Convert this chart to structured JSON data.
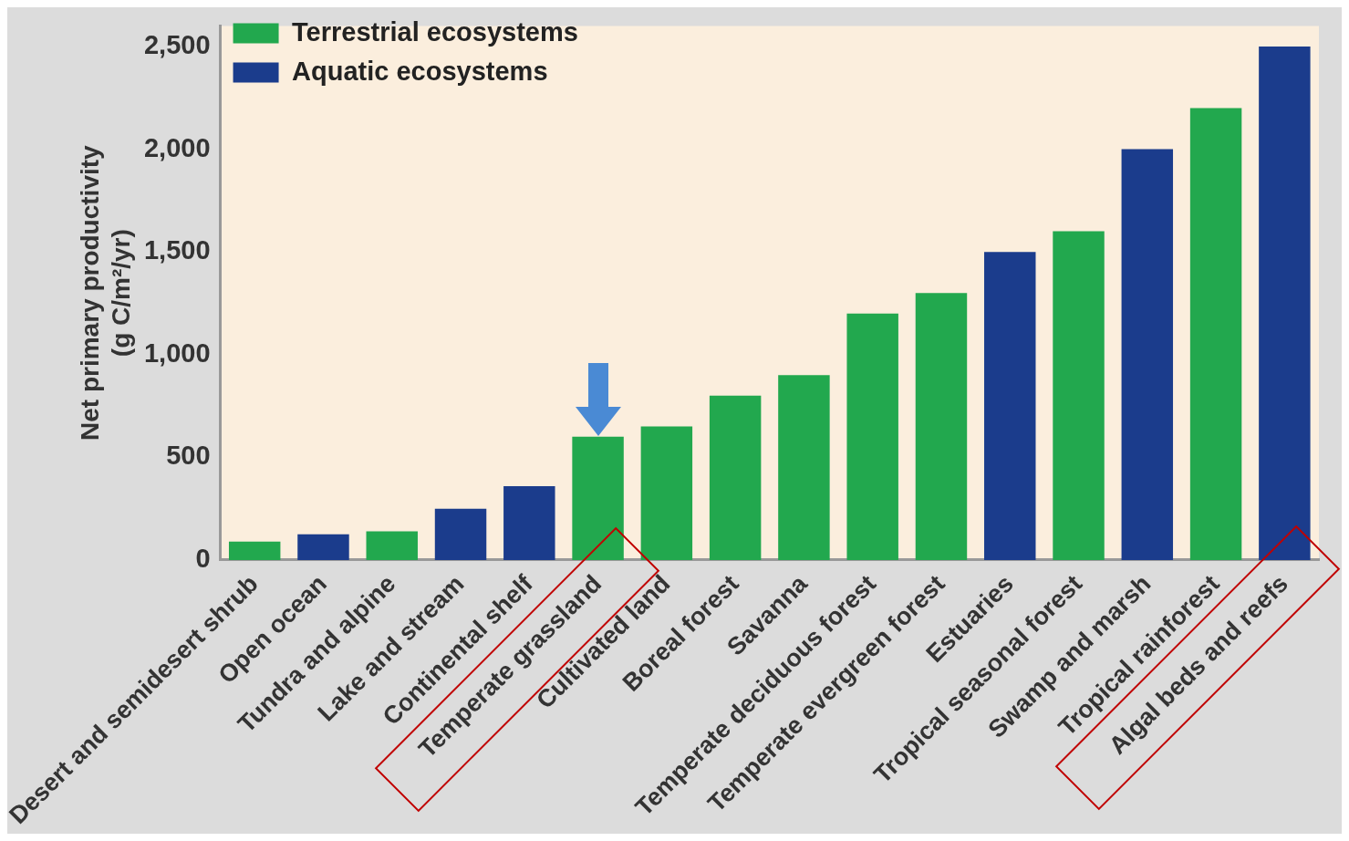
{
  "chart_data": {
    "type": "bar",
    "ylabel": "Net primary productivity\n(g C/m²/yr)",
    "categories": [
      "Desert and semidesert shrub",
      "Open ocean",
      "Tundra and alpine",
      "Lake and stream",
      "Continental shelf",
      "Temperate grassland",
      "Cultivated land",
      "Boreal forest",
      "Savanna",
      "Temperate deciduous forest",
      "Temperate evergreen forest",
      "Estuaries",
      "Tropical seasonal forest",
      "Swamp and marsh",
      "Tropical rainforest",
      "Algal beds and reefs"
    ],
    "series": [
      {
        "name": "Terrestrial ecosystems",
        "color": "#22a84e",
        "values": [
          90,
          null,
          140,
          null,
          null,
          600,
          650,
          800,
          900,
          1200,
          1300,
          null,
          1600,
          null,
          2200,
          null
        ]
      },
      {
        "name": "Aquatic ecosystems",
        "color": "#1b3c8c",
        "values": [
          null,
          125,
          null,
          250,
          360,
          null,
          null,
          null,
          null,
          null,
          null,
          1500,
          null,
          2000,
          null,
          2500
        ]
      }
    ],
    "ylim": [
      0,
      2600
    ],
    "yticks": [
      0,
      500,
      {
        "value": 1000,
        "label": "1,000"
      },
      {
        "value": 1500,
        "label": "1,500"
      },
      {
        "value": 2000,
        "label": "2,000"
      },
      {
        "value": 2500,
        "label": "2,500"
      }
    ],
    "grid": false,
    "legend": "top left"
  }
}
